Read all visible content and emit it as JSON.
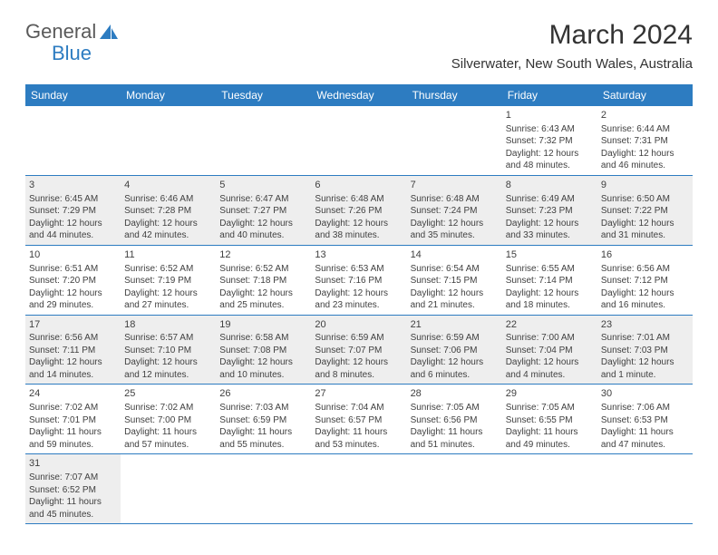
{
  "brand": {
    "part1": "General",
    "part2": "Blue"
  },
  "title": "March 2024",
  "location": "Silverwater, New South Wales, Australia",
  "colors": {
    "header_bg": "#2d7cc1",
    "header_text": "#ffffff",
    "row_shade": "#eeeeee",
    "row_plain": "#ffffff",
    "border": "#2d7cc1",
    "text": "#404040"
  },
  "dayHeaders": [
    "Sunday",
    "Monday",
    "Tuesday",
    "Wednesday",
    "Thursday",
    "Friday",
    "Saturday"
  ],
  "weeks": [
    {
      "shaded": false,
      "cells": [
        null,
        null,
        null,
        null,
        null,
        {
          "n": "1",
          "sr": "Sunrise: 6:43 AM",
          "ss": "Sunset: 7:32 PM",
          "dl1": "Daylight: 12 hours",
          "dl2": "and 48 minutes."
        },
        {
          "n": "2",
          "sr": "Sunrise: 6:44 AM",
          "ss": "Sunset: 7:31 PM",
          "dl1": "Daylight: 12 hours",
          "dl2": "and 46 minutes."
        }
      ]
    },
    {
      "shaded": true,
      "cells": [
        {
          "n": "3",
          "sr": "Sunrise: 6:45 AM",
          "ss": "Sunset: 7:29 PM",
          "dl1": "Daylight: 12 hours",
          "dl2": "and 44 minutes."
        },
        {
          "n": "4",
          "sr": "Sunrise: 6:46 AM",
          "ss": "Sunset: 7:28 PM",
          "dl1": "Daylight: 12 hours",
          "dl2": "and 42 minutes."
        },
        {
          "n": "5",
          "sr": "Sunrise: 6:47 AM",
          "ss": "Sunset: 7:27 PM",
          "dl1": "Daylight: 12 hours",
          "dl2": "and 40 minutes."
        },
        {
          "n": "6",
          "sr": "Sunrise: 6:48 AM",
          "ss": "Sunset: 7:26 PM",
          "dl1": "Daylight: 12 hours",
          "dl2": "and 38 minutes."
        },
        {
          "n": "7",
          "sr": "Sunrise: 6:48 AM",
          "ss": "Sunset: 7:24 PM",
          "dl1": "Daylight: 12 hours",
          "dl2": "and 35 minutes."
        },
        {
          "n": "8",
          "sr": "Sunrise: 6:49 AM",
          "ss": "Sunset: 7:23 PM",
          "dl1": "Daylight: 12 hours",
          "dl2": "and 33 minutes."
        },
        {
          "n": "9",
          "sr": "Sunrise: 6:50 AM",
          "ss": "Sunset: 7:22 PM",
          "dl1": "Daylight: 12 hours",
          "dl2": "and 31 minutes."
        }
      ]
    },
    {
      "shaded": false,
      "cells": [
        {
          "n": "10",
          "sr": "Sunrise: 6:51 AM",
          "ss": "Sunset: 7:20 PM",
          "dl1": "Daylight: 12 hours",
          "dl2": "and 29 minutes."
        },
        {
          "n": "11",
          "sr": "Sunrise: 6:52 AM",
          "ss": "Sunset: 7:19 PM",
          "dl1": "Daylight: 12 hours",
          "dl2": "and 27 minutes."
        },
        {
          "n": "12",
          "sr": "Sunrise: 6:52 AM",
          "ss": "Sunset: 7:18 PM",
          "dl1": "Daylight: 12 hours",
          "dl2": "and 25 minutes."
        },
        {
          "n": "13",
          "sr": "Sunrise: 6:53 AM",
          "ss": "Sunset: 7:16 PM",
          "dl1": "Daylight: 12 hours",
          "dl2": "and 23 minutes."
        },
        {
          "n": "14",
          "sr": "Sunrise: 6:54 AM",
          "ss": "Sunset: 7:15 PM",
          "dl1": "Daylight: 12 hours",
          "dl2": "and 21 minutes."
        },
        {
          "n": "15",
          "sr": "Sunrise: 6:55 AM",
          "ss": "Sunset: 7:14 PM",
          "dl1": "Daylight: 12 hours",
          "dl2": "and 18 minutes."
        },
        {
          "n": "16",
          "sr": "Sunrise: 6:56 AM",
          "ss": "Sunset: 7:12 PM",
          "dl1": "Daylight: 12 hours",
          "dl2": "and 16 minutes."
        }
      ]
    },
    {
      "shaded": true,
      "cells": [
        {
          "n": "17",
          "sr": "Sunrise: 6:56 AM",
          "ss": "Sunset: 7:11 PM",
          "dl1": "Daylight: 12 hours",
          "dl2": "and 14 minutes."
        },
        {
          "n": "18",
          "sr": "Sunrise: 6:57 AM",
          "ss": "Sunset: 7:10 PM",
          "dl1": "Daylight: 12 hours",
          "dl2": "and 12 minutes."
        },
        {
          "n": "19",
          "sr": "Sunrise: 6:58 AM",
          "ss": "Sunset: 7:08 PM",
          "dl1": "Daylight: 12 hours",
          "dl2": "and 10 minutes."
        },
        {
          "n": "20",
          "sr": "Sunrise: 6:59 AM",
          "ss": "Sunset: 7:07 PM",
          "dl1": "Daylight: 12 hours",
          "dl2": "and 8 minutes."
        },
        {
          "n": "21",
          "sr": "Sunrise: 6:59 AM",
          "ss": "Sunset: 7:06 PM",
          "dl1": "Daylight: 12 hours",
          "dl2": "and 6 minutes."
        },
        {
          "n": "22",
          "sr": "Sunrise: 7:00 AM",
          "ss": "Sunset: 7:04 PM",
          "dl1": "Daylight: 12 hours",
          "dl2": "and 4 minutes."
        },
        {
          "n": "23",
          "sr": "Sunrise: 7:01 AM",
          "ss": "Sunset: 7:03 PM",
          "dl1": "Daylight: 12 hours",
          "dl2": "and 1 minute."
        }
      ]
    },
    {
      "shaded": false,
      "cells": [
        {
          "n": "24",
          "sr": "Sunrise: 7:02 AM",
          "ss": "Sunset: 7:01 PM",
          "dl1": "Daylight: 11 hours",
          "dl2": "and 59 minutes."
        },
        {
          "n": "25",
          "sr": "Sunrise: 7:02 AM",
          "ss": "Sunset: 7:00 PM",
          "dl1": "Daylight: 11 hours",
          "dl2": "and 57 minutes."
        },
        {
          "n": "26",
          "sr": "Sunrise: 7:03 AM",
          "ss": "Sunset: 6:59 PM",
          "dl1": "Daylight: 11 hours",
          "dl2": "and 55 minutes."
        },
        {
          "n": "27",
          "sr": "Sunrise: 7:04 AM",
          "ss": "Sunset: 6:57 PM",
          "dl1": "Daylight: 11 hours",
          "dl2": "and 53 minutes."
        },
        {
          "n": "28",
          "sr": "Sunrise: 7:05 AM",
          "ss": "Sunset: 6:56 PM",
          "dl1": "Daylight: 11 hours",
          "dl2": "and 51 minutes."
        },
        {
          "n": "29",
          "sr": "Sunrise: 7:05 AM",
          "ss": "Sunset: 6:55 PM",
          "dl1": "Daylight: 11 hours",
          "dl2": "and 49 minutes."
        },
        {
          "n": "30",
          "sr": "Sunrise: 7:06 AM",
          "ss": "Sunset: 6:53 PM",
          "dl1": "Daylight: 11 hours",
          "dl2": "and 47 minutes."
        }
      ]
    },
    {
      "shaded": true,
      "cells": [
        {
          "n": "31",
          "sr": "Sunrise: 7:07 AM",
          "ss": "Sunset: 6:52 PM",
          "dl1": "Daylight: 11 hours",
          "dl2": "and 45 minutes."
        },
        null,
        null,
        null,
        null,
        null,
        null
      ]
    }
  ]
}
